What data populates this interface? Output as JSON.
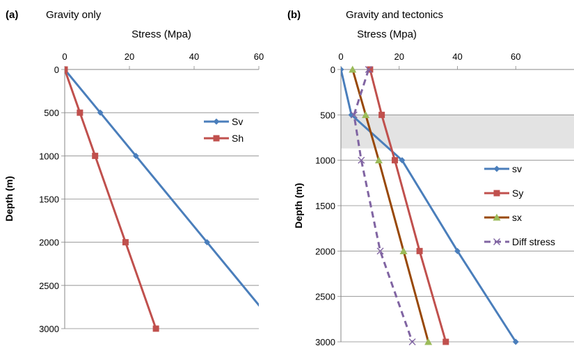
{
  "chart_data": [
    {
      "type": "line",
      "panel_label": "(a)",
      "title": "Gravity only",
      "xlabel": "Stress (Mpa)",
      "ylabel": "Depth (m)",
      "x_axis_position": "top",
      "y_reversed": true,
      "xlim": [
        0,
        60
      ],
      "ylim": [
        0,
        3000
      ],
      "x_ticks": [
        "0",
        "20",
        "40",
        "60"
      ],
      "y_ticks": [
        "0",
        "500",
        "1000",
        "1500",
        "2000",
        "2500",
        "3000"
      ],
      "grid": "horizontal",
      "legend_position": "right",
      "series": [
        {
          "name": "Sv",
          "color": "#4a7ebb",
          "marker": "diamond",
          "dash": "solid",
          "points": [
            [
              0,
              0
            ],
            [
              11,
              500
            ],
            [
              22,
              1000
            ],
            [
              44,
              2000
            ],
            [
              66,
              3000
            ]
          ]
        },
        {
          "name": "Sh",
          "color": "#c0504d",
          "marker": "square",
          "dash": "solid",
          "points": [
            [
              0,
              0
            ],
            [
              4.7,
              500
            ],
            [
              9.4,
              1000
            ],
            [
              18.8,
              2000
            ],
            [
              28.2,
              3000
            ]
          ]
        }
      ]
    },
    {
      "type": "line",
      "panel_label": "(b)",
      "title": "Gravity and tectonics",
      "xlabel": "Stress (Mpa)",
      "ylabel": "Depth  (m)",
      "x_axis_position": "top",
      "y_reversed": true,
      "xlim": [
        0,
        80
      ],
      "ylim": [
        0,
        3000
      ],
      "x_ticks": [
        "0",
        "20",
        "40",
        "60"
      ],
      "y_ticks": [
        "0",
        "500",
        "1000",
        "1500",
        "2000",
        "2500",
        "3000"
      ],
      "grid": "horizontal",
      "legend_position": "right",
      "shaded_depth_band": [
        500,
        870
      ],
      "series": [
        {
          "name": "sv",
          "color": "#4a7ebb",
          "marker": "diamond",
          "dash": "solid",
          "points": [
            [
              0,
              0
            ],
            [
              3.6,
              500
            ],
            [
              21,
              1000
            ],
            [
              40,
              2000
            ],
            [
              60,
              3000
            ]
          ]
        },
        {
          "name": "Sy",
          "color": "#c0504d",
          "marker": "square",
          "dash": "solid",
          "points": [
            [
              10,
              0
            ],
            [
              14,
              500
            ],
            [
              18.5,
              1000
            ],
            [
              27,
              2000
            ],
            [
              36,
              3000
            ]
          ]
        },
        {
          "name": "sx",
          "color": "#984807",
          "marker": "triangle",
          "marker_color": "#9bbb59",
          "dash": "solid",
          "points": [
            [
              4,
              0
            ],
            [
              8.5,
              500
            ],
            [
              13,
              1000
            ],
            [
              21.5,
              2000
            ],
            [
              30,
              3000
            ]
          ]
        },
        {
          "name": "Diff stress",
          "color": "#8064a2",
          "marker": "x",
          "dash": "dashed",
          "points": [
            [
              9.5,
              0
            ],
            [
              4.5,
              500
            ],
            [
              7,
              1000
            ],
            [
              13.5,
              2000
            ],
            [
              24.5,
              3000
            ]
          ]
        }
      ]
    }
  ]
}
